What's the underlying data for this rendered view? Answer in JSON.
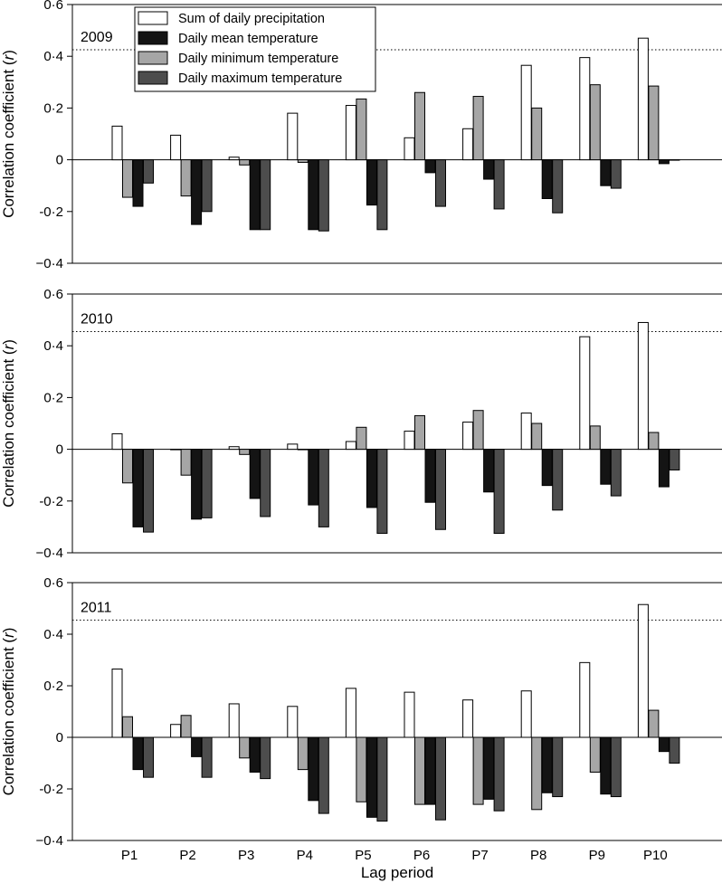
{
  "chart_data": {
    "type": "bar",
    "xlabel": "Lag period",
    "ylabel": "Correlation coefficient (r)",
    "ylabel_prefix": "Correlation coefficient (",
    "ylabel_italic": "r",
    "ylabel_suffix": ")",
    "categories": [
      "P1",
      "P2",
      "P3",
      "P4",
      "P5",
      "P6",
      "P7",
      "P8",
      "P9",
      "P10"
    ],
    "ylim": [
      -0.4,
      0.6
    ],
    "yticks": [
      -0.4,
      -0.2,
      0,
      0.2,
      0.4,
      0.6
    ],
    "ytick_labels": [
      "−0·4",
      "-0·2",
      "0",
      "0·2",
      "0·4",
      "0·6"
    ],
    "legend": [
      {
        "name": "Sum of daily precipitation",
        "color": "#ffffff"
      },
      {
        "name": "Daily mean temperature",
        "color": "#141414"
      },
      {
        "name": "Daily minimum temperature",
        "color": "#a6a6a6"
      },
      {
        "name": "Daily maximum temperature",
        "color": "#4d4d4d"
      }
    ],
    "legend_location": "top-left",
    "panels": [
      {
        "year": "2009",
        "significance_line": 0.425,
        "series": [
          {
            "name": "Sum of daily precipitation",
            "values": [
              0.13,
              0.095,
              0.01,
              0.18,
              0.21,
              0.085,
              0.12,
              0.365,
              0.395,
              0.47
            ]
          },
          {
            "name": "Daily minimum temperature",
            "values": [
              -0.145,
              -0.14,
              -0.02,
              -0.01,
              0.235,
              0.26,
              0.245,
              0.2,
              0.29,
              0.285
            ]
          },
          {
            "name": "Daily mean temperature",
            "values": [
              -0.18,
              -0.25,
              -0.27,
              -0.27,
              -0.175,
              -0.05,
              -0.075,
              -0.15,
              -0.1,
              -0.015
            ]
          },
          {
            "name": "Daily maximum temperature",
            "values": [
              -0.09,
              -0.2,
              -0.27,
              -0.275,
              -0.27,
              -0.18,
              -0.19,
              -0.205,
              -0.11,
              0
            ]
          }
        ]
      },
      {
        "year": "2010",
        "significance_line": 0.455,
        "series": [
          {
            "name": "Sum of daily precipitation",
            "values": [
              0.06,
              0,
              0.01,
              0.02,
              0.03,
              0.07,
              0.105,
              0.14,
              0.435,
              0.49
            ]
          },
          {
            "name": "Daily minimum temperature",
            "values": [
              -0.13,
              -0.1,
              -0.02,
              0,
              0.085,
              0.13,
              0.15,
              0.1,
              0.09,
              0.065
            ]
          },
          {
            "name": "Daily mean temperature",
            "values": [
              -0.3,
              -0.27,
              -0.19,
              -0.215,
              -0.225,
              -0.205,
              -0.165,
              -0.14,
              -0.135,
              -0.145
            ]
          },
          {
            "name": "Daily maximum temperature",
            "values": [
              -0.32,
              -0.265,
              -0.26,
              -0.3,
              -0.325,
              -0.31,
              -0.325,
              -0.235,
              -0.18,
              -0.08
            ]
          }
        ]
      },
      {
        "year": "2011",
        "significance_line": 0.455,
        "series": [
          {
            "name": "Sum of daily precipitation",
            "values": [
              0.265,
              0.05,
              0.13,
              0.12,
              0.19,
              0.175,
              0.145,
              0.18,
              0.29,
              0.515
            ]
          },
          {
            "name": "Daily minimum temperature",
            "values": [
              0.08,
              0.085,
              -0.08,
              -0.125,
              -0.25,
              -0.26,
              -0.26,
              -0.28,
              -0.135,
              0.105
            ]
          },
          {
            "name": "Daily mean temperature",
            "values": [
              -0.125,
              -0.075,
              -0.135,
              -0.245,
              -0.31,
              -0.26,
              -0.24,
              -0.215,
              -0.22,
              -0.055
            ]
          },
          {
            "name": "Daily maximum temperature",
            "values": [
              -0.155,
              -0.155,
              -0.16,
              -0.295,
              -0.325,
              -0.32,
              -0.285,
              -0.23,
              -0.23,
              -0.1
            ]
          }
        ]
      }
    ]
  }
}
